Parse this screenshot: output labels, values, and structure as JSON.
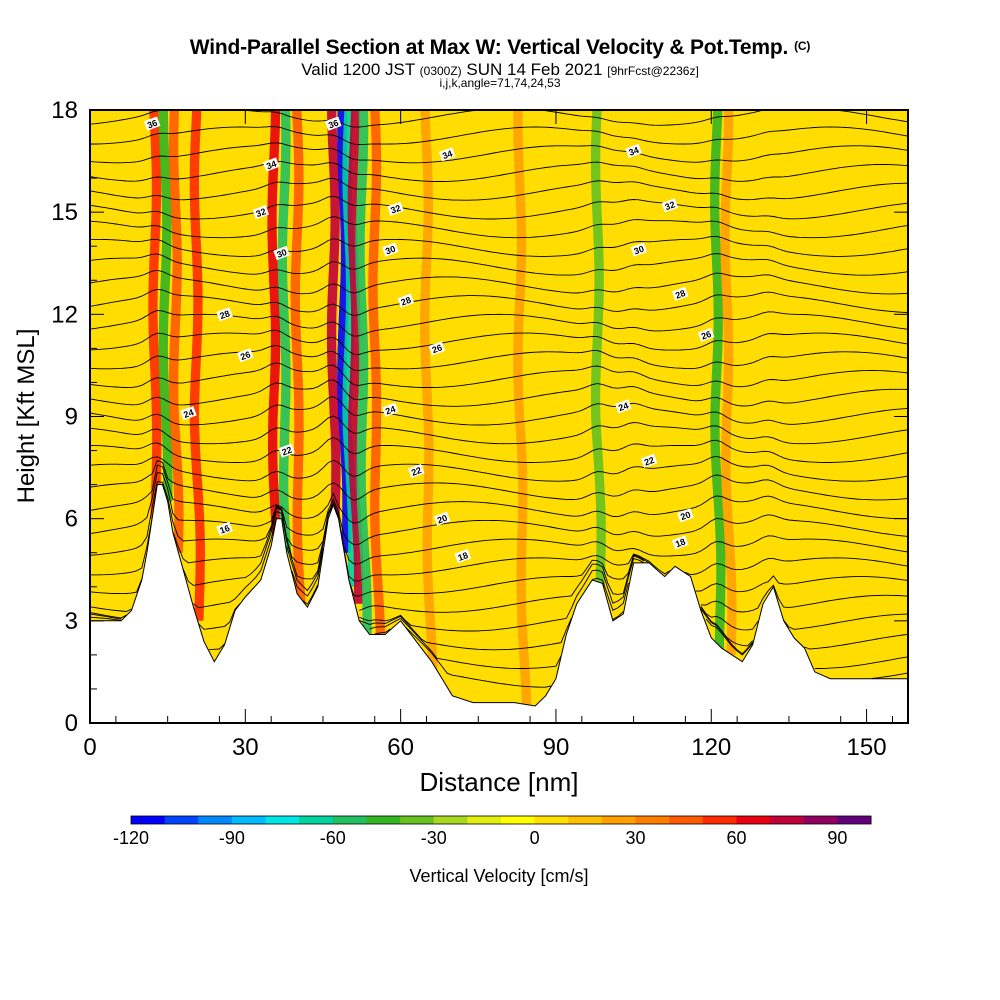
{
  "titles": {
    "main": "Wind-Parallel Section at Max W: Vertical Velocity & Pot.Temp.",
    "copyright": "(C)",
    "valid_prefix": "Valid 1200 JST",
    "valid_utc": "(0300Z)",
    "valid_date": "SUN 14 Feb 2021",
    "forecast": "[9hrFcst@2236z]",
    "indices": "i,j,k,angle=71,74,24,53"
  },
  "chart_data": {
    "type": "heatmap",
    "xlabel": "Distance [nm]",
    "ylabel": "Height [Kft MSL]",
    "xlim": [
      0,
      158
    ],
    "ylim": [
      0,
      18
    ],
    "x_ticks": [
      0,
      30,
      60,
      90,
      120,
      150
    ],
    "y_ticks": [
      0,
      3,
      6,
      9,
      12,
      15,
      18
    ],
    "grid": false,
    "colorbar": {
      "label": "Vertical Velocity [cm/s]",
      "range": [
        -120,
        100
      ],
      "tick_values": [
        -120,
        -90,
        -60,
        -30,
        0,
        30,
        60,
        90
      ],
      "colors": [
        "#0000ff",
        "#0044ff",
        "#0088ff",
        "#00bbff",
        "#00e5e5",
        "#00d2a0",
        "#22c060",
        "#33b522",
        "#66c020",
        "#a8d820",
        "#e0ee10",
        "#ffff00",
        "#ffe000",
        "#ffc000",
        "#ffa000",
        "#ff7e00",
        "#ff5a00",
        "#ff2a00",
        "#e80010",
        "#c0003a",
        "#900060",
        "#60007a"
      ]
    },
    "terrain": [
      [
        0,
        3.0
      ],
      [
        2,
        3.0
      ],
      [
        6,
        3.0
      ],
      [
        8,
        3.3
      ],
      [
        10,
        4.2
      ],
      [
        11,
        5.0
      ],
      [
        12,
        6.0
      ],
      [
        13,
        7.0
      ],
      [
        14,
        7.0
      ],
      [
        15,
        6.5
      ],
      [
        16,
        5.6
      ],
      [
        18,
        4.5
      ],
      [
        20,
        3.4
      ],
      [
        22,
        2.4
      ],
      [
        24,
        1.8
      ],
      [
        26,
        2.3
      ],
      [
        28,
        3.3
      ],
      [
        30,
        3.7
      ],
      [
        33,
        4.2
      ],
      [
        35,
        5.2
      ],
      [
        36,
        6.0
      ],
      [
        37,
        6.0
      ],
      [
        38,
        5.0
      ],
      [
        40,
        3.8
      ],
      [
        42,
        3.4
      ],
      [
        44,
        4.0
      ],
      [
        46,
        6.0
      ],
      [
        47,
        6.4
      ],
      [
        48,
        6.0
      ],
      [
        50,
        4.2
      ],
      [
        52,
        3.0
      ],
      [
        54,
        2.6
      ],
      [
        57,
        2.6
      ],
      [
        60,
        3.0
      ],
      [
        63,
        2.4
      ],
      [
        66,
        1.8
      ],
      [
        68,
        1.3
      ],
      [
        70,
        0.8
      ],
      [
        74,
        0.6
      ],
      [
        78,
        0.6
      ],
      [
        82,
        0.6
      ],
      [
        86,
        0.5
      ],
      [
        88,
        0.8
      ],
      [
        90,
        1.3
      ],
      [
        92,
        2.6
      ],
      [
        94,
        3.5
      ],
      [
        97,
        4.2
      ],
      [
        99,
        4.1
      ],
      [
        101,
        3.0
      ],
      [
        103,
        3.2
      ],
      [
        105,
        4.7
      ],
      [
        108,
        4.7
      ],
      [
        111,
        4.3
      ],
      [
        113,
        4.6
      ],
      [
        116,
        4.3
      ],
      [
        118,
        3.3
      ],
      [
        120,
        2.5
      ],
      [
        122,
        2.2
      ],
      [
        124,
        2.0
      ],
      [
        126,
        1.8
      ],
      [
        128,
        2.3
      ],
      [
        130,
        3.5
      ],
      [
        132,
        4.0
      ],
      [
        134,
        3.0
      ],
      [
        136,
        2.5
      ],
      [
        138,
        2.2
      ],
      [
        140,
        1.5
      ],
      [
        143,
        1.3
      ],
      [
        150,
        1.3
      ],
      [
        158,
        1.3
      ]
    ],
    "updraft_bands": [
      {
        "x": 12.5,
        "w_cm_s": 55
      },
      {
        "x": 14.5,
        "w_cm_s": -45
      },
      {
        "x": 16.5,
        "w_cm_s": 40
      },
      {
        "x": 20.5,
        "w_cm_s": 50
      },
      {
        "x": 35.5,
        "w_cm_s": 60
      },
      {
        "x": 37.5,
        "w_cm_s": -55
      },
      {
        "x": 40.0,
        "w_cm_s": 45
      },
      {
        "x": 47.0,
        "w_cm_s": 75
      },
      {
        "x": 49.0,
        "w_cm_s": -120
      },
      {
        "x": 50.0,
        "w_cm_s": -70
      },
      {
        "x": 51.0,
        "w_cm_s": 70
      },
      {
        "x": 52.5,
        "w_cm_s": -60
      },
      {
        "x": 55.0,
        "w_cm_s": 45
      },
      {
        "x": 65.0,
        "w_cm_s": 25
      },
      {
        "x": 83.0,
        "w_cm_s": 20
      },
      {
        "x": 98.0,
        "w_cm_s": -40
      },
      {
        "x": 121.0,
        "w_cm_s": -50
      },
      {
        "x": 123.0,
        "w_cm_s": 25
      }
    ],
    "isentrope_labels": [
      {
        "value": "16",
        "x": 26,
        "y": 5.7
      },
      {
        "value": "18",
        "x": 72,
        "y": 4.9
      },
      {
        "value": "18",
        "x": 114,
        "y": 5.3
      },
      {
        "value": "20",
        "x": 68,
        "y": 6.0
      },
      {
        "value": "20",
        "x": 115,
        "y": 6.1
      },
      {
        "value": "22",
        "x": 38,
        "y": 8.0
      },
      {
        "value": "22",
        "x": 63,
        "y": 7.4
      },
      {
        "value": "22",
        "x": 108,
        "y": 7.7
      },
      {
        "value": "24",
        "x": 19,
        "y": 9.1
      },
      {
        "value": "24",
        "x": 58,
        "y": 9.2
      },
      {
        "value": "24",
        "x": 103,
        "y": 9.3
      },
      {
        "value": "26",
        "x": 30,
        "y": 10.8
      },
      {
        "value": "26",
        "x": 67,
        "y": 11.0
      },
      {
        "value": "26",
        "x": 119,
        "y": 11.4
      },
      {
        "value": "28",
        "x": 26,
        "y": 12.0
      },
      {
        "value": "28",
        "x": 61,
        "y": 12.4
      },
      {
        "value": "28",
        "x": 114,
        "y": 12.6
      },
      {
        "value": "30",
        "x": 37,
        "y": 13.8
      },
      {
        "value": "30",
        "x": 58,
        "y": 13.9
      },
      {
        "value": "30",
        "x": 106,
        "y": 13.9
      },
      {
        "value": "32",
        "x": 33,
        "y": 15.0
      },
      {
        "value": "32",
        "x": 59,
        "y": 15.1
      },
      {
        "value": "32",
        "x": 112,
        "y": 15.2
      },
      {
        "value": "34",
        "x": 35,
        "y": 16.4
      },
      {
        "value": "34",
        "x": 69,
        "y": 16.7
      },
      {
        "value": "34",
        "x": 105,
        "y": 16.8
      },
      {
        "value": "36",
        "x": 12,
        "y": 17.6
      },
      {
        "value": "36",
        "x": 47,
        "y": 17.6
      }
    ]
  }
}
